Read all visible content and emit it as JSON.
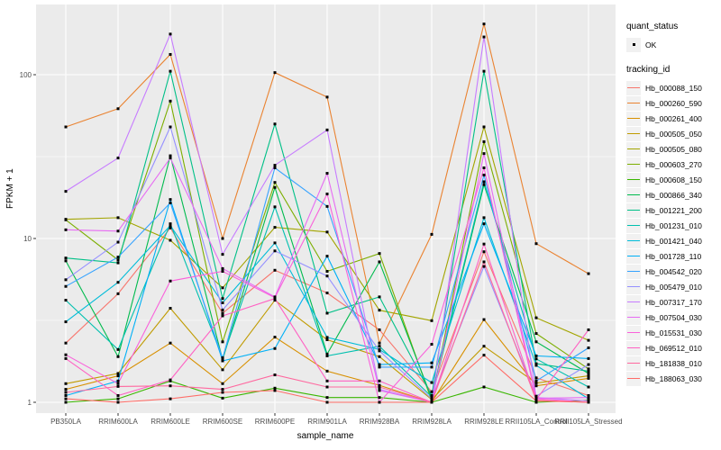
{
  "chart_data": {
    "type": "line",
    "title": "",
    "xlabel": "sample_name",
    "ylabel": "FPKM + 1",
    "y_scale": "log10",
    "y_ticks": [
      1,
      10,
      100
    ],
    "y_tick_labels": [
      "1",
      "10",
      "100"
    ],
    "y_minor_breaks": [
      3.162,
      31.62
    ],
    "grid": true,
    "panel_bg_color": "#ebebeb",
    "grid_color": "#ffffff",
    "point_color": "#000000",
    "tick_text_color": "#4d4d4d",
    "categories": [
      "PB350LA",
      "RRIM600LA",
      "RRIM600LE",
      "RRIM600SE",
      "RRIM600PE",
      "RRIM901LA",
      "RRIM928BA",
      "RRIM928LA",
      "RRIM928LE",
      "RRII105LA_Control",
      "RRII105LA_Stressed"
    ],
    "legend": {
      "quant_status_title": "quant_status",
      "quant_status_items": [
        {
          "label": "OK"
        }
      ],
      "tracking_id_title": "tracking_id",
      "legend_position": "right"
    },
    "series": [
      {
        "name": "Hb_000088_150",
        "color": "#F8766D",
        "values": [
          2.3,
          4.6,
          11.6,
          3.5,
          6.4,
          4.65,
          2.77,
          1.16,
          8.3,
          1.41,
          1.1
        ]
      },
      {
        "name": "Hb_000260_590",
        "color": "#EA8331",
        "values": [
          48,
          62,
          133,
          10,
          103,
          73,
          2.3,
          10.6,
          204,
          9.3,
          6.1
        ]
      },
      {
        "name": "Hb_000261_400",
        "color": "#D89000",
        "values": [
          1.2,
          1.45,
          2.3,
          1.3,
          2.5,
          1.55,
          1.27,
          1.0,
          3.2,
          1.26,
          1.4
        ]
      },
      {
        "name": "Hb_000505_050",
        "color": "#C09B00",
        "values": [
          1.3,
          1.5,
          3.75,
          1.58,
          4.2,
          2.41,
          1.9,
          1.04,
          2.2,
          1.31,
          1.45
        ]
      },
      {
        "name": "Hb_000505_080",
        "color": "#A3A500",
        "values": [
          13.1,
          13.4,
          9.75,
          5.0,
          11.7,
          10.95,
          3.65,
          3.15,
          48,
          3.28,
          2.39
        ]
      },
      {
        "name": "Hb_000603_270",
        "color": "#7CAE00",
        "values": [
          13.0,
          7.4,
          69,
          2.34,
          22,
          6.3,
          8.1,
          1.02,
          39,
          2.63,
          1.6
        ]
      },
      {
        "name": "Hb_000608_150",
        "color": "#39B600",
        "values": [
          1.0,
          1.05,
          1.35,
          1.06,
          1.22,
          1.07,
          1.07,
          1.0,
          1.24,
          1.0,
          1.03
        ]
      },
      {
        "name": "Hb_000866_340",
        "color": "#00BB4E",
        "values": [
          7.3,
          1.9,
          32,
          1.82,
          20.5,
          1.97,
          7.2,
          1.06,
          21.3,
          2.34,
          1.5
        ]
      },
      {
        "name": "Hb_001221_200",
        "color": "#00C087",
        "values": [
          7.6,
          7.1,
          105,
          4.3,
          50,
          3.5,
          4.4,
          1.1,
          105,
          1.72,
          1.55
        ]
      },
      {
        "name": "Hb_001231_010",
        "color": "#00C0AF",
        "values": [
          4.2,
          2.1,
          12.3,
          1.87,
          15.6,
          1.92,
          2.2,
          1.08,
          22.2,
          1.84,
          1.24
        ]
      },
      {
        "name": "Hb_001421_040",
        "color": "#00BCD8",
        "values": [
          3.1,
          5.4,
          12.0,
          4.05,
          9.4,
          2.49,
          2.1,
          1.32,
          13.4,
          1.68,
          1.05
        ]
      },
      {
        "name": "Hb_001728_110",
        "color": "#00B0F6",
        "values": [
          1.1,
          1.35,
          17.3,
          1.79,
          2.13,
          7.8,
          1.7,
          1.74,
          12.3,
          1.92,
          1.85
        ]
      },
      {
        "name": "Hb_004542_020",
        "color": "#35A2FF",
        "values": [
          5.1,
          7.7,
          16.5,
          1.85,
          27,
          15.7,
          1.64,
          1.64,
          24.4,
          1.35,
          2.15
        ]
      },
      {
        "name": "Hb_005479_010",
        "color": "#9590FF",
        "values": [
          5.6,
          9.5,
          48,
          3.66,
          8.4,
          5.9,
          2.06,
          1.05,
          6.75,
          1.09,
          1.7
        ]
      },
      {
        "name": "Hb_007317_170",
        "color": "#C77CFF",
        "values": [
          19.4,
          31,
          177,
          8.0,
          28,
          46,
          1.2,
          1.0,
          170,
          1.07,
          1.02
        ]
      },
      {
        "name": "Hb_007504_030",
        "color": "#E76BF3",
        "values": [
          11.3,
          11.1,
          31,
          6.55,
          4.4,
          25,
          1.18,
          1.0,
          33,
          1.06,
          1.07
        ]
      },
      {
        "name": "Hb_015531_030",
        "color": "#FA62DB",
        "values": [
          1.95,
          1.3,
          5.5,
          6.3,
          4.35,
          18.7,
          1.0,
          2.26,
          27,
          1.05,
          1.0
        ]
      },
      {
        "name": "Hb_069512_010",
        "color": "#FF61C3",
        "values": [
          1.85,
          1.1,
          1.37,
          3.37,
          4.3,
          1.35,
          1.35,
          1.0,
          9.25,
          1.04,
          2.77
        ]
      },
      {
        "name": "Hb_181838_010",
        "color": "#FF689F",
        "values": [
          1.15,
          1.25,
          1.26,
          1.2,
          1.47,
          1.24,
          1.24,
          1.0,
          7.2,
          1.03,
          1.0
        ]
      },
      {
        "name": "Hb_188063_030",
        "color": "#FF6C67",
        "values": [
          1.05,
          1.0,
          1.05,
          1.15,
          1.18,
          1.0,
          1.0,
          1.0,
          1.94,
          1.02,
          1.0
        ]
      }
    ]
  }
}
